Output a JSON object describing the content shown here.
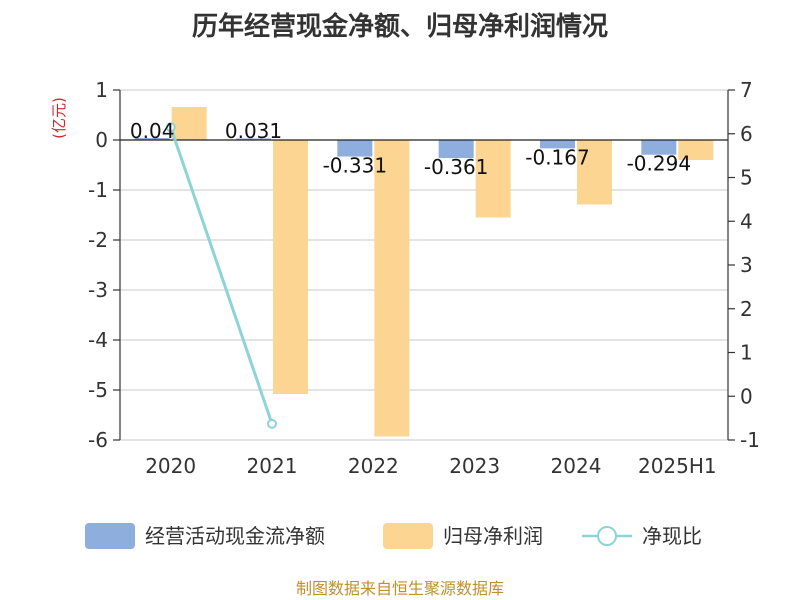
{
  "chart_data": {
    "type": "bar",
    "title": "历年经营现金净额、归母净利润情况",
    "categories": [
      "2020",
      "2021",
      "2022",
      "2023",
      "2024",
      "2025H1"
    ],
    "y_left": {
      "unit": "(亿元)",
      "ylim": [
        -6,
        1
      ],
      "ticks": [
        "1",
        "0",
        "-1",
        "-2",
        "-3",
        "-4",
        "-5",
        "-6"
      ]
    },
    "y_right": {
      "ylim": [
        -1,
        7
      ],
      "ticks": [
        "7",
        "6",
        "5",
        "4",
        "3",
        "2",
        "1",
        "0",
        "-1"
      ]
    },
    "series": [
      {
        "name": "经营活动现金流净额",
        "type": "bar",
        "axis": "left",
        "color": "#8eaedd",
        "values": [
          0.04,
          0.031,
          -0.331,
          -0.361,
          -0.167,
          -0.294
        ],
        "labels": [
          "0.04",
          "0.031",
          "-0.331",
          "-0.361",
          "-0.167",
          "-0.294"
        ]
      },
      {
        "name": "归母净利润",
        "type": "bar",
        "axis": "left",
        "color": "#fdd593",
        "values": [
          0.66,
          -5.08,
          -5.93,
          -1.55,
          -1.29,
          -0.4
        ]
      },
      {
        "name": "净现比",
        "type": "line",
        "axis": "right",
        "color": "#8dd4d9",
        "x": [
          "2020",
          "2021"
        ],
        "values": [
          6.15,
          -0.63
        ]
      }
    ],
    "grid": true,
    "legend": "bottom"
  },
  "source": "制图数据来自恒生聚源数据库"
}
